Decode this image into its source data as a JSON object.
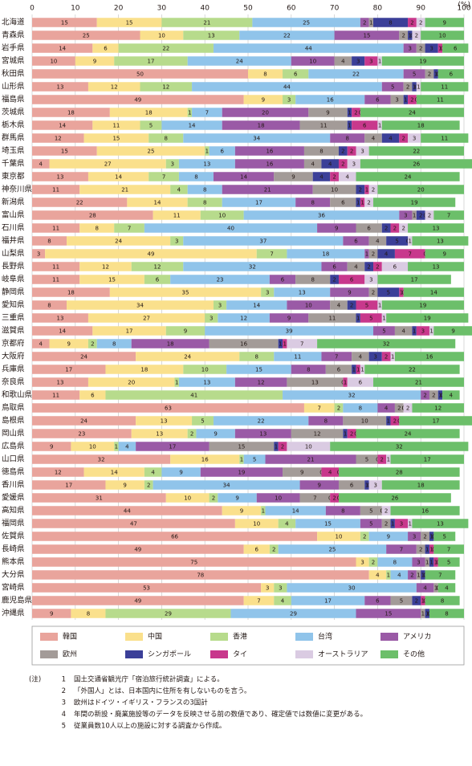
{
  "chart_data": {
    "type": "stacked-barh",
    "x_unit": "(%)",
    "xlim": [
      0,
      100
    ],
    "xticks": [
      0,
      10,
      20,
      30,
      40,
      50,
      60,
      70,
      80,
      90,
      100
    ],
    "grid": true,
    "legend": "bottom",
    "categories": [
      "北海道",
      "青森県",
      "岩手県",
      "宮城県",
      "秋田県",
      "山形県",
      "福島県",
      "茨城県",
      "栃木県",
      "群馬県",
      "埼玉県",
      "千葉県",
      "東京都",
      "神奈川県",
      "新潟県",
      "富山県",
      "石川県",
      "福井県",
      "山梨県",
      "長野県",
      "岐阜県",
      "静岡県",
      "愛知県",
      "三重県",
      "滋賀県",
      "京都府",
      "大阪府",
      "兵庫県",
      "奈良県",
      "和歌山県",
      "鳥取県",
      "島根県",
      "岡山県",
      "広島県",
      "山口県",
      "徳島県",
      "香川県",
      "愛媛県",
      "高知県",
      "福岡県",
      "佐賀県",
      "長崎県",
      "熊本県",
      "大分県",
      "宮崎県",
      "鹿児島県",
      "沖縄県"
    ],
    "series": [
      {
        "name": "韓国",
        "color": "#e9a49c",
        "values": [
          15,
          25,
          14,
          10,
          50,
          13,
          49,
          18,
          14,
          12,
          15,
          4,
          13,
          11,
          22,
          28,
          11,
          8,
          3,
          11,
          11,
          18,
          8,
          13,
          14,
          4,
          24,
          17,
          13,
          11,
          63,
          24,
          23,
          9,
          32,
          12,
          17,
          31,
          44,
          47,
          66,
          49,
          75,
          78,
          53,
          49,
          9
        ]
      },
      {
        "name": "中国",
        "color": "#fae08c",
        "values": [
          15,
          10,
          6,
          9,
          8,
          12,
          9,
          18,
          11,
          15,
          25,
          27,
          14,
          21,
          14,
          11,
          8,
          24,
          49,
          12,
          15,
          35,
          34,
          27,
          17,
          9,
          24,
          18,
          20,
          6,
          7,
          13,
          13,
          10,
          16,
          14,
          9,
          10,
          9,
          10,
          10,
          6,
          3,
          4,
          3,
          7,
          8
        ]
      },
      {
        "name": "香港",
        "color": "#b7db8c",
        "values": [
          21,
          13,
          22,
          17,
          6,
          12,
          3,
          1,
          5,
          8,
          1,
          3,
          7,
          4,
          8,
          10,
          7,
          3,
          7,
          12,
          6,
          3,
          3,
          3,
          9,
          2,
          8,
          10,
          1,
          41,
          2,
          5,
          2,
          1,
          1,
          4,
          2,
          2,
          1,
          4,
          2,
          2,
          2,
          1,
          3,
          4,
          29
        ]
      },
      {
        "name": "台湾",
        "color": "#90c4ea",
        "values": [
          25,
          22,
          44,
          24,
          22,
          44,
          16,
          7,
          14,
          34,
          6,
          13,
          8,
          8,
          17,
          36,
          40,
          37,
          18,
          32,
          23,
          13,
          14,
          12,
          39,
          8,
          11,
          15,
          13,
          32,
          8,
          22,
          9,
          4,
          5,
          9,
          34,
          9,
          14,
          15,
          9,
          25,
          8,
          4,
          30,
          17,
          29
        ]
      },
      {
        "name": "アメリカ",
        "color": "#9a5aa6",
        "values": [
          2,
          15,
          3,
          10,
          5,
          5,
          6,
          20,
          18,
          8,
          16,
          16,
          14,
          21,
          8,
          3,
          9,
          6,
          1,
          6,
          6,
          9,
          10,
          9,
          5,
          18,
          7,
          8,
          12,
          2,
          4,
          8,
          13,
          17,
          21,
          19,
          9,
          10,
          8,
          5,
          3,
          7,
          3,
          2,
          4,
          6,
          15
        ]
      },
      {
        "name": "欧州",
        "color": "#a39b98",
        "values": [
          1,
          2,
          2,
          4,
          2,
          2,
          3,
          9,
          11,
          4,
          8,
          4,
          9,
          10,
          6,
          1,
          6,
          4,
          2,
          4,
          8,
          2,
          4,
          11,
          4,
          16,
          4,
          6,
          13,
          2,
          2,
          10,
          12,
          15,
          5,
          9,
          6,
          7,
          5,
          2,
          2,
          2,
          1,
          1,
          1,
          5,
          1
        ]
      },
      {
        "name": "シンガポール",
        "color": "#3b3f98",
        "values": [
          8,
          1,
          3,
          3,
          1,
          1,
          1,
          1,
          1,
          4,
          2,
          4,
          4,
          2,
          1,
          2,
          2,
          5,
          4,
          2,
          2,
          5,
          2,
          1,
          1,
          1,
          3,
          1,
          0,
          1,
          0,
          1,
          1,
          1,
          0,
          0,
          1,
          0,
          0,
          1,
          1,
          1,
          1,
          1,
          0,
          2,
          1
        ]
      },
      {
        "name": "タイ",
        "color": "#c8388c",
        "values": [
          2,
          0,
          1,
          3,
          0,
          0,
          2,
          2,
          6,
          2,
          2,
          2,
          2,
          1,
          1,
          0,
          2,
          0,
          7,
          2,
          6,
          1,
          5,
          5,
          3,
          1,
          2,
          1,
          1,
          0,
          0,
          2,
          2,
          2,
          2,
          4,
          0,
          2,
          0,
          3,
          0,
          1,
          1,
          0,
          0,
          1,
          0
        ]
      },
      {
        "name": "オーストラリア",
        "color": "#dacbe2",
        "values": [
          2,
          2,
          0,
          1,
          0,
          1,
          0,
          0,
          1,
          3,
          3,
          3,
          4,
          2,
          2,
          2,
          2,
          1,
          0,
          6,
          3,
          0,
          1,
          1,
          1,
          7,
          1,
          1,
          6,
          0,
          2,
          0,
          0,
          10,
          1,
          0,
          3,
          0,
          2,
          1,
          0,
          0,
          0,
          0,
          0,
          0,
          0
        ]
      },
      {
        "name": "その他",
        "color": "#6cbf6a",
        "values": [
          9,
          10,
          6,
          19,
          6,
          11,
          11,
          24,
          18,
          11,
          22,
          26,
          24,
          20,
          19,
          7,
          13,
          13,
          9,
          13,
          17,
          14,
          19,
          19,
          9,
          32,
          16,
          22,
          21,
          4,
          12,
          17,
          24,
          32,
          17,
          28,
          18,
          26,
          16,
          13,
          5,
          7,
          5,
          7,
          4,
          8,
          8
        ]
      }
    ]
  },
  "notes": {
    "label": "(注)",
    "items": [
      {
        "number": 1,
        "text": "国土交通省観光庁「宿泊旅行統計調査」による。"
      },
      {
        "number": 2,
        "text": "「外国人」とは、日本国内に住所を有しないものを言う。"
      },
      {
        "number": 3,
        "text": "欧州はドイツ・イギリス・フランスの3国計"
      },
      {
        "number": 4,
        "text": "年間の新設・廃業施設等のデータを反映させる前の数値であり、確定値では数値に変更がある。"
      },
      {
        "number": 5,
        "text": "従業員数10人以上の施設に対する調査から作成。"
      }
    ]
  }
}
